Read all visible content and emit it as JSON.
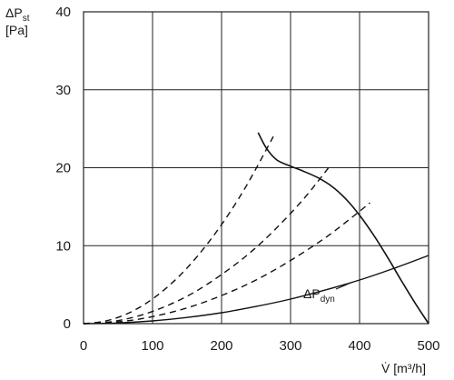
{
  "chart_data": {
    "type": "line",
    "ylabel_delta": "ΔP",
    "ylabel_sub": "st",
    "ylabel_unit": "[Pa]",
    "xlabel": "V̇ [m³/h]",
    "xlim": [
      0,
      500
    ],
    "ylim": [
      0,
      40
    ],
    "x_ticks": [
      "0",
      "100",
      "200",
      "300",
      "400",
      "500"
    ],
    "y_ticks": [
      "0",
      "10",
      "20",
      "30",
      "40"
    ],
    "grid": true,
    "series": [
      {
        "kind": "fan",
        "x": [
          253,
          265,
          280,
          300,
          320,
          340,
          360,
          380,
          400,
          420,
          440,
          460,
          480,
          500
        ],
        "y": [
          24.5,
          22.5,
          21.0,
          20.2,
          19.5,
          18.7,
          17.6,
          16.0,
          13.9,
          11.4,
          8.6,
          5.6,
          2.7,
          0.0
        ]
      },
      {
        "kind": "dynamic",
        "name_main": "ΔP",
        "name_sub": "dyn",
        "x": [
          0,
          50,
          100,
          150,
          200,
          250,
          300,
          350,
          400,
          450,
          500
        ],
        "y": [
          0.0,
          0.09,
          0.35,
          0.79,
          1.4,
          2.2,
          3.15,
          4.3,
          5.6,
          7.1,
          8.75
        ]
      },
      {
        "kind": "system",
        "x": [
          0,
          30,
          60,
          90,
          120,
          150,
          180,
          210,
          240,
          275
        ],
        "y": [
          0.0,
          0.3,
          1.14,
          2.57,
          4.57,
          7.14,
          10.3,
          14.0,
          18.3,
          24.0
        ]
      },
      {
        "kind": "system",
        "x": [
          0,
          40,
          80,
          120,
          160,
          200,
          240,
          280,
          320,
          355
        ],
        "y": [
          0.0,
          0.25,
          1.0,
          2.26,
          4.0,
          6.3,
          9.0,
          12.3,
          16.1,
          20.0
        ]
      },
      {
        "kind": "system",
        "x": [
          0,
          50,
          100,
          150,
          200,
          250,
          300,
          350,
          390,
          415
        ],
        "y": [
          0.0,
          0.22,
          0.9,
          2.02,
          3.6,
          5.6,
          8.1,
          11.0,
          13.7,
          15.5
        ]
      }
    ]
  }
}
